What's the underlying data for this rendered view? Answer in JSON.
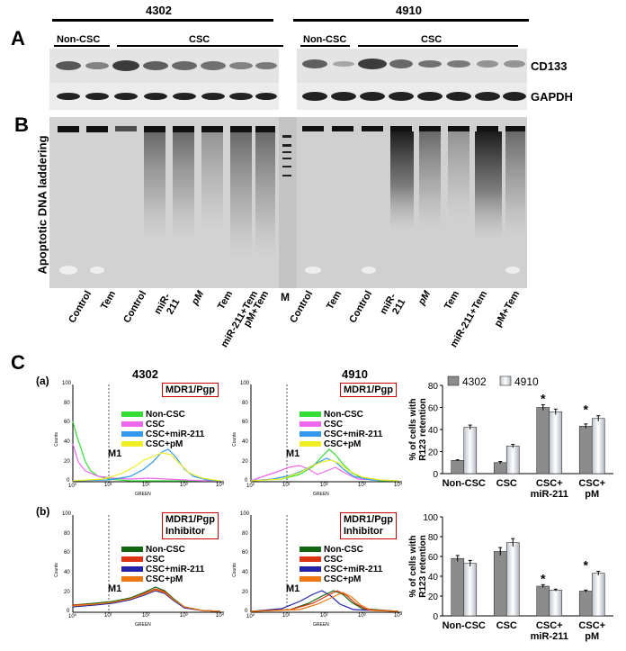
{
  "panel_a": {
    "label": "A",
    "cell_lines": [
      "4302",
      "4910"
    ],
    "group_labels": [
      "Non-CSC",
      "CSC",
      "Non-CSC",
      "CSC"
    ],
    "row_labels": [
      "CD133",
      "GAPDH"
    ]
  },
  "panel_b": {
    "label": "B",
    "ylabel": "Apoptotic DNA laddering",
    "lanes_left": [
      "Control",
      "Tem",
      "Control",
      "miR-211",
      "pM",
      "Tem",
      "miR-211+Tem",
      "pM+Tem"
    ],
    "marker": "M",
    "lanes_right": [
      "Control",
      "Tem",
      "Control",
      "miR-211",
      "pM",
      "Tem",
      "miR-211+Tem",
      "pM+Tem"
    ]
  },
  "panel_c": {
    "label": "C",
    "row_a": "(a)",
    "row_b": "(b)",
    "titles": [
      "4302",
      "4910"
    ],
    "box_a": "MDR1/Pgp",
    "box_b_line1": "MDR1/Pgp",
    "box_b_line2": "Inhibitor",
    "gate": "M1",
    "axis_x": "GREEN",
    "axis_y": "Counts",
    "hist_ticks_x": [
      "10⁰",
      "10¹",
      "10²",
      "10³",
      "10⁴"
    ],
    "hist_ticks_y": [
      "0",
      "20",
      "40",
      "60",
      "80",
      "100"
    ],
    "legend_labels": [
      "Non-CSC",
      "CSC",
      "CSC+miR-211",
      "CSC+pM"
    ],
    "legend_colors_a": [
      "#33dd33",
      "#ee66ee",
      "#3399ee",
      "#eeee22"
    ],
    "legend_colors_b": [
      "#116611",
      "#dd3311",
      "#2222aa",
      "#ee7711"
    ]
  },
  "chart_data": [
    {
      "type": "bar",
      "ylabel": "% of cells with R123 retention",
      "categories": [
        "Non-CSC",
        "CSC",
        "CSC+ miR-211",
        "CSC+ pM"
      ],
      "series": [
        {
          "name": "4302",
          "values": [
            12,
            10,
            60,
            43
          ],
          "errors": [
            0.5,
            1,
            2.5,
            2
          ]
        },
        {
          "name": "4910",
          "values": [
            42,
            25,
            56,
            50
          ],
          "errors": [
            2,
            1.5,
            2.5,
            2.5
          ]
        }
      ],
      "significance": [
        "",
        "",
        "*",
        "*"
      ],
      "ylim": [
        0,
        80
      ],
      "yticks": [
        0,
        20,
        40,
        60,
        80
      ],
      "legend": "top"
    },
    {
      "type": "bar",
      "ylabel": "% of cells with R123 retention",
      "categories": [
        "Non-CSC",
        "CSC",
        "CSC+ miR-211",
        "CSC+ pM"
      ],
      "series": [
        {
          "name": "4302",
          "values": [
            58,
            65,
            30,
            25
          ],
          "errors": [
            3,
            4,
            1.5,
            1
          ]
        },
        {
          "name": "4910",
          "values": [
            53,
            74,
            26,
            43
          ],
          "errors": [
            3,
            4,
            1,
            2
          ]
        }
      ],
      "significance": [
        "",
        "",
        "*",
        "*"
      ],
      "ylim": [
        0,
        100
      ],
      "yticks": [
        0,
        20,
        40,
        60,
        80,
        100
      ]
    }
  ]
}
